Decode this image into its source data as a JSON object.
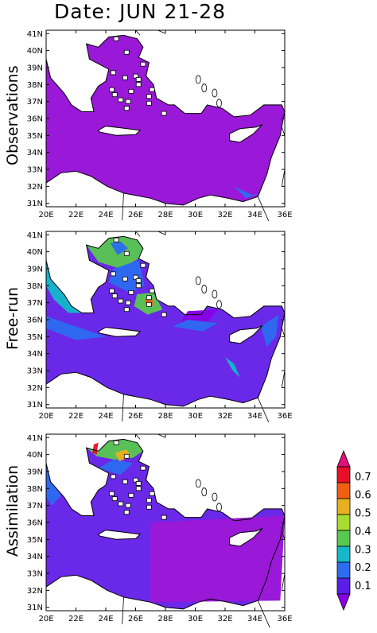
{
  "title": "Date: JUN 21-28",
  "panels": [
    {
      "label": "Observations",
      "key": "obs"
    },
    {
      "label": "Free-run",
      "key": "free"
    },
    {
      "label": "Assimilation",
      "key": "assim"
    }
  ],
  "axes": {
    "lat_ticks": [
      "41N",
      "40N",
      "39N",
      "38N",
      "37N",
      "36N",
      "35N",
      "34N",
      "33N",
      "32N",
      "31N"
    ],
    "lon_ticks": [
      "20E",
      "22E",
      "24E",
      "26E",
      "28E",
      "30E",
      "32E",
      "34E",
      "36E"
    ]
  },
  "colorbar": {
    "labels": [
      "0.1",
      "0.2",
      "0.3",
      "0.4",
      "0.5",
      "0.6",
      "0.7"
    ],
    "colors": [
      "#8a00e6",
      "#5a1ee6",
      "#2c6cf0",
      "#14b8c8",
      "#58c850",
      "#a8dc30",
      "#e8b020",
      "#f06010",
      "#e81028",
      "#e0107a"
    ]
  },
  "palette": {
    "sea_low": "#9a18d8",
    "sea_mid": "#6a28e8",
    "land": "#ffffff",
    "coast": "#000000"
  }
}
